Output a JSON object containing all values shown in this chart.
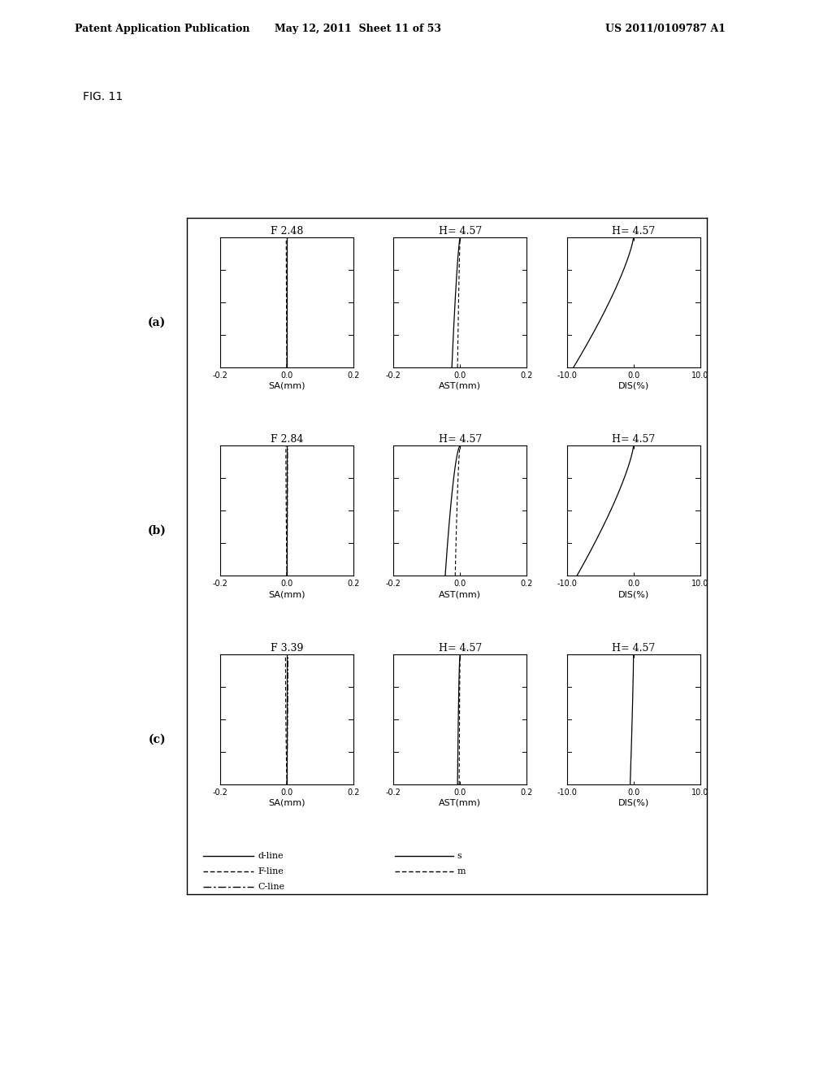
{
  "title": "FIG. 11",
  "rows": [
    {
      "label": "(a)",
      "f_number": "F 2.48",
      "h_value": "4.57"
    },
    {
      "label": "(b)",
      "f_number": "F 2.84",
      "h_value": "4.57"
    },
    {
      "label": "(c)",
      "f_number": "F 3.39",
      "h_value": "4.57"
    }
  ],
  "background_color": "#ffffff",
  "header_left": "Patent Application Publication",
  "header_mid": "May 12, 2011  Sheet 11 of 53",
  "header_right": "US 2011/0109787 A1"
}
